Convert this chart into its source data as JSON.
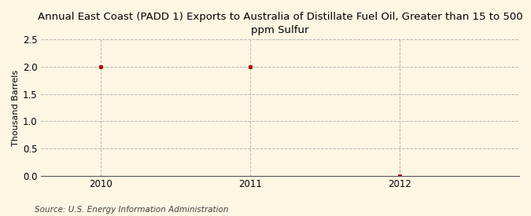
{
  "title": "Annual East Coast (PADD 1) Exports to Australia of Distillate Fuel Oil, Greater than 15 to 500\nppm Sulfur",
  "ylabel": "Thousand Barrels",
  "source": "Source: U.S. Energy Information Administration",
  "x": [
    2010,
    2011,
    2012
  ],
  "y": [
    2.0,
    2.0,
    0.0
  ],
  "xlim": [
    2009.6,
    2012.8
  ],
  "ylim": [
    0.0,
    2.5
  ],
  "yticks": [
    0.0,
    0.5,
    1.0,
    1.5,
    2.0,
    2.5
  ],
  "xticks": [
    2010,
    2011,
    2012
  ],
  "marker_color": "#aa0000",
  "marker": "s",
  "marker_size": 3.5,
  "grid_color": "#b0b0b0",
  "bg_color": "#fdf6e3",
  "fig_bg_color": "#fdf6e3",
  "title_fontsize": 9.5,
  "label_fontsize": 8,
  "tick_fontsize": 8.5,
  "source_fontsize": 7.5
}
